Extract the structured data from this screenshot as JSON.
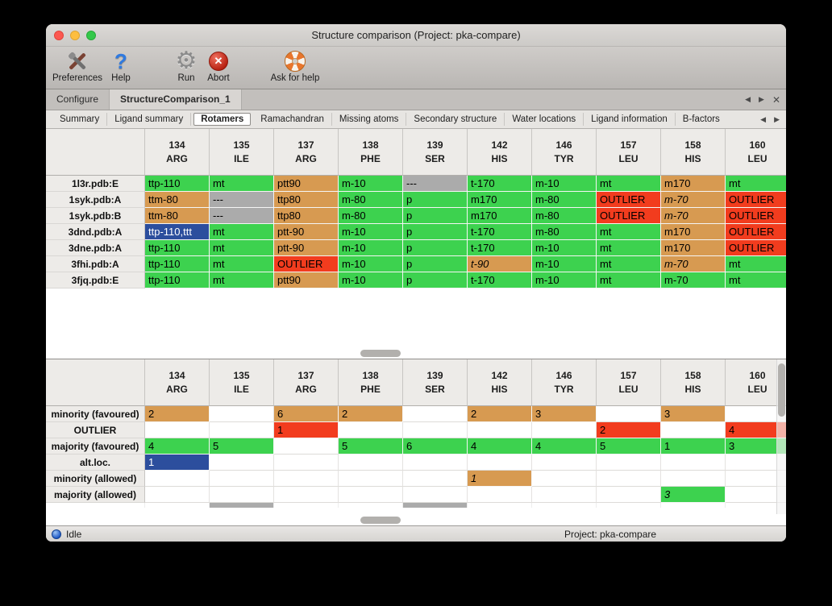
{
  "window": {
    "title": "Structure comparison (Project: pka-compare)"
  },
  "toolbar": {
    "items": [
      {
        "label": "Preferences",
        "icon": "crossed-tools-icon"
      },
      {
        "label": "Help",
        "icon": "question-mark-icon"
      },
      {
        "label": "Run",
        "icon": "gear-icon"
      },
      {
        "label": "Abort",
        "icon": "abort-cross-icon"
      },
      {
        "label": "Ask for help",
        "icon": "lifebuoy-icon"
      }
    ]
  },
  "icons": {
    "help_glyph": "?",
    "gear_glyph": "⚙",
    "abort_glyph": "✕"
  },
  "tabbar": {
    "tabs": [
      {
        "label": "Configure",
        "active": false
      },
      {
        "label": "StructureComparison_1",
        "active": true
      }
    ],
    "nav": {
      "back": "◀",
      "forward": "▶",
      "close": "✕"
    }
  },
  "subtabbar": {
    "tabs": [
      "Summary",
      "Ligand summary",
      "Rotamers",
      "Ramachandran",
      "Missing atoms",
      "Secondary structure",
      "Water locations",
      "Ligand information",
      "B-factors"
    ],
    "active_index": 2,
    "nav": {
      "back": "◀",
      "forward": "▶"
    }
  },
  "columns": [
    {
      "number": "134",
      "name": "ARG"
    },
    {
      "number": "135",
      "name": "ILE"
    },
    {
      "number": "137",
      "name": "ARG"
    },
    {
      "number": "138",
      "name": "PHE"
    },
    {
      "number": "139",
      "name": "SER"
    },
    {
      "number": "142",
      "name": "HIS"
    },
    {
      "number": "146",
      "name": "TYR"
    },
    {
      "number": "157",
      "name": "LEU"
    },
    {
      "number": "158",
      "name": "HIS"
    },
    {
      "number": "160",
      "name": "LEU"
    }
  ],
  "structures_table": {
    "rows": [
      {
        "label": "1l3r.pdb:E",
        "cells": [
          {
            "text": "ttp-110",
            "state": "favoured"
          },
          {
            "text": "mt",
            "state": "favoured"
          },
          {
            "text": "ptt90",
            "state": "minority"
          },
          {
            "text": "m-10",
            "state": "favoured"
          },
          {
            "text": "---",
            "state": "missing"
          },
          {
            "text": "t-170",
            "state": "favoured"
          },
          {
            "text": "m-10",
            "state": "favoured"
          },
          {
            "text": "mt",
            "state": "favoured"
          },
          {
            "text": "m170",
            "state": "minority"
          },
          {
            "text": "mt",
            "state": "favoured"
          }
        ]
      },
      {
        "label": "1syk.pdb:A",
        "cells": [
          {
            "text": "ttm-80",
            "state": "minority"
          },
          {
            "text": "---",
            "state": "missing"
          },
          {
            "text": "ttp80",
            "state": "minority"
          },
          {
            "text": "m-80",
            "state": "favoured"
          },
          {
            "text": "p",
            "state": "favoured"
          },
          {
            "text": "m170",
            "state": "favoured"
          },
          {
            "text": "m-80",
            "state": "favoured"
          },
          {
            "text": "OUTLIER",
            "state": "outlier"
          },
          {
            "text": "m-70",
            "state": "minority",
            "italic": true
          },
          {
            "text": "OUTLIER",
            "state": "outlier"
          }
        ]
      },
      {
        "label": "1syk.pdb:B",
        "cells": [
          {
            "text": "ttm-80",
            "state": "minority"
          },
          {
            "text": "---",
            "state": "missing"
          },
          {
            "text": "ttp80",
            "state": "minority"
          },
          {
            "text": "m-80",
            "state": "favoured"
          },
          {
            "text": "p",
            "state": "favoured"
          },
          {
            "text": "m170",
            "state": "favoured"
          },
          {
            "text": "m-80",
            "state": "favoured"
          },
          {
            "text": "OUTLIER",
            "state": "outlier"
          },
          {
            "text": "m-70",
            "state": "minority",
            "italic": true
          },
          {
            "text": "OUTLIER",
            "state": "outlier"
          }
        ]
      },
      {
        "label": "3dnd.pdb:A",
        "cells": [
          {
            "text": "ttp-110,ttt",
            "state": "selected"
          },
          {
            "text": "mt",
            "state": "favoured"
          },
          {
            "text": "ptt-90",
            "state": "minority"
          },
          {
            "text": "m-10",
            "state": "favoured"
          },
          {
            "text": "p",
            "state": "favoured"
          },
          {
            "text": "t-170",
            "state": "favoured"
          },
          {
            "text": "m-80",
            "state": "favoured"
          },
          {
            "text": "mt",
            "state": "favoured"
          },
          {
            "text": "m170",
            "state": "minority"
          },
          {
            "text": "OUTLIER",
            "state": "outlier"
          }
        ]
      },
      {
        "label": "3dne.pdb:A",
        "cells": [
          {
            "text": "ttp-110",
            "state": "favoured"
          },
          {
            "text": "mt",
            "state": "favoured"
          },
          {
            "text": "ptt-90",
            "state": "minority"
          },
          {
            "text": "m-10",
            "state": "favoured"
          },
          {
            "text": "p",
            "state": "favoured"
          },
          {
            "text": "t-170",
            "state": "favoured"
          },
          {
            "text": "m-10",
            "state": "favoured"
          },
          {
            "text": "mt",
            "state": "favoured"
          },
          {
            "text": "m170",
            "state": "minority"
          },
          {
            "text": "OUTLIER",
            "state": "outlier"
          }
        ]
      },
      {
        "label": "3fhi.pdb:A",
        "cells": [
          {
            "text": "ttp-110",
            "state": "favoured"
          },
          {
            "text": "mt",
            "state": "favoured"
          },
          {
            "text": "OUTLIER",
            "state": "outlier"
          },
          {
            "text": "m-10",
            "state": "favoured"
          },
          {
            "text": "p",
            "state": "favoured"
          },
          {
            "text": "t-90",
            "state": "minority",
            "italic": true
          },
          {
            "text": "m-10",
            "state": "favoured"
          },
          {
            "text": "mt",
            "state": "favoured"
          },
          {
            "text": "m-70",
            "state": "minority",
            "italic": true
          },
          {
            "text": "mt",
            "state": "favoured"
          }
        ]
      },
      {
        "label": "3fjq.pdb:E",
        "cells": [
          {
            "text": "ttp-110",
            "state": "favoured"
          },
          {
            "text": "mt",
            "state": "favoured"
          },
          {
            "text": "ptt90",
            "state": "minority"
          },
          {
            "text": "m-10",
            "state": "favoured"
          },
          {
            "text": "p",
            "state": "favoured"
          },
          {
            "text": "t-170",
            "state": "favoured"
          },
          {
            "text": "m-10",
            "state": "favoured"
          },
          {
            "text": "mt",
            "state": "favoured"
          },
          {
            "text": "m-70",
            "state": "favoured"
          },
          {
            "text": "mt",
            "state": "favoured"
          }
        ]
      }
    ]
  },
  "summary_table": {
    "rows": [
      {
        "label": "minority (favoured)",
        "cells": [
          {
            "text": "2",
            "state": "minority"
          },
          {
            "text": "",
            "state": "empty"
          },
          {
            "text": "6",
            "state": "minority"
          },
          {
            "text": "2",
            "state": "minority"
          },
          {
            "text": "",
            "state": "empty"
          },
          {
            "text": "2",
            "state": "minority"
          },
          {
            "text": "3",
            "state": "minority"
          },
          {
            "text": "",
            "state": "empty"
          },
          {
            "text": "3",
            "state": "minority"
          },
          {
            "text": "",
            "state": "empty"
          }
        ]
      },
      {
        "label": "OUTLIER",
        "cells": [
          {
            "text": "",
            "state": "empty"
          },
          {
            "text": "",
            "state": "empty"
          },
          {
            "text": "1",
            "state": "outlier"
          },
          {
            "text": "",
            "state": "empty"
          },
          {
            "text": "",
            "state": "empty"
          },
          {
            "text": "",
            "state": "empty"
          },
          {
            "text": "",
            "state": "empty"
          },
          {
            "text": "2",
            "state": "outlier"
          },
          {
            "text": "",
            "state": "empty"
          },
          {
            "text": "4",
            "state": "outlier"
          }
        ]
      },
      {
        "label": "majority (favoured)",
        "cells": [
          {
            "text": "4",
            "state": "favoured"
          },
          {
            "text": "5",
            "state": "favoured"
          },
          {
            "text": "",
            "state": "empty"
          },
          {
            "text": "5",
            "state": "favoured"
          },
          {
            "text": "6",
            "state": "favoured"
          },
          {
            "text": "4",
            "state": "favoured"
          },
          {
            "text": "4",
            "state": "favoured"
          },
          {
            "text": "5",
            "state": "favoured"
          },
          {
            "text": "1",
            "state": "favoured"
          },
          {
            "text": "3",
            "state": "favoured"
          }
        ]
      },
      {
        "label": "alt.loc.",
        "cells": [
          {
            "text": "1",
            "state": "selected"
          },
          {
            "text": "",
            "state": "empty"
          },
          {
            "text": "",
            "state": "empty"
          },
          {
            "text": "",
            "state": "empty"
          },
          {
            "text": "",
            "state": "empty"
          },
          {
            "text": "",
            "state": "empty"
          },
          {
            "text": "",
            "state": "empty"
          },
          {
            "text": "",
            "state": "empty"
          },
          {
            "text": "",
            "state": "empty"
          },
          {
            "text": "",
            "state": "empty"
          }
        ]
      },
      {
        "label": "minority (allowed)",
        "cells": [
          {
            "text": "",
            "state": "empty"
          },
          {
            "text": "",
            "state": "empty"
          },
          {
            "text": "",
            "state": "empty"
          },
          {
            "text": "",
            "state": "empty"
          },
          {
            "text": "",
            "state": "empty"
          },
          {
            "text": "1",
            "state": "minority",
            "italic": true
          },
          {
            "text": "",
            "state": "empty"
          },
          {
            "text": "",
            "state": "empty"
          },
          {
            "text": "",
            "state": "empty"
          },
          {
            "text": "",
            "state": "empty"
          }
        ]
      },
      {
        "label": "majority (allowed)",
        "cells": [
          {
            "text": "",
            "state": "empty"
          },
          {
            "text": "",
            "state": "empty"
          },
          {
            "text": "",
            "state": "empty"
          },
          {
            "text": "",
            "state": "empty"
          },
          {
            "text": "",
            "state": "empty"
          },
          {
            "text": "",
            "state": "empty"
          },
          {
            "text": "",
            "state": "empty"
          },
          {
            "text": "",
            "state": "empty"
          },
          {
            "text": "3",
            "state": "favoured",
            "italic": true
          },
          {
            "text": "",
            "state": "empty"
          }
        ]
      }
    ],
    "partial_row": {
      "missing_column_indices": [
        1,
        4
      ]
    }
  },
  "statusbar": {
    "status": "Idle",
    "project": "Project: pka-compare"
  },
  "colors": {
    "favoured": "#3dd24f",
    "minority": "#d79a51",
    "outlier": "#f23c1e",
    "missing": "#ababab",
    "selected": "#2c4e9d"
  }
}
